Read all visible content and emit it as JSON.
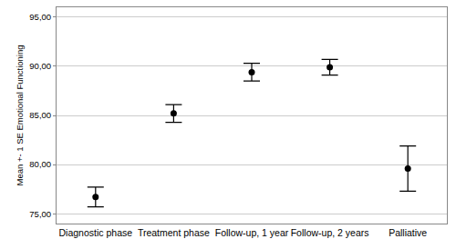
{
  "chart_data": {
    "type": "scatter",
    "y_label": "Mean +- 1 SE Emotional Functioning",
    "categories": [
      "Diagnostic phase",
      "Treatment phase",
      "Follow-up, 1 year",
      "Follow-up, 2 years",
      "Palliative"
    ],
    "values": [
      76.7,
      85.2,
      89.4,
      89.9,
      79.6
    ],
    "error": [
      1.0,
      0.9,
      0.9,
      0.8,
      2.3
    ],
    "color": "#000000",
    "marker": "circle",
    "ylim": [
      74,
      96
    ],
    "yticks": [
      {
        "value": 75,
        "label": "75,00"
      },
      {
        "value": 80,
        "label": "80,00"
      },
      {
        "value": 85,
        "label": "85,00"
      },
      {
        "value": 90,
        "label": "90,00"
      },
      {
        "value": 95,
        "label": "95,00"
      }
    ],
    "grid": true
  }
}
